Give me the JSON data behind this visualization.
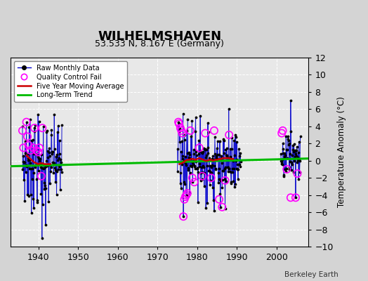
{
  "title": "WILHELMSHAVEN",
  "subtitle": "53.533 N, 8.167 E (Germany)",
  "ylabel": "Temperature Anomaly (°C)",
  "credit": "Berkeley Earth",
  "xlim": [
    1933,
    2008
  ],
  "ylim": [
    -10,
    12
  ],
  "yticks": [
    -10,
    -8,
    -6,
    -4,
    -2,
    0,
    2,
    4,
    6,
    8,
    10,
    12
  ],
  "xticks": [
    1940,
    1950,
    1960,
    1970,
    1980,
    1990,
    2000
  ],
  "plot_bg": "#e8e8e8",
  "fig_bg": "#d4d4d4",
  "raw_color": "#0000cc",
  "qc_color": "#ff00ff",
  "moving_avg_color": "#cc0000",
  "trend_color": "#00bb00",
  "trend_x": [
    1933,
    2008
  ],
  "trend_y": [
    -0.65,
    0.25
  ],
  "ma1_x": [
    1937.0,
    1937.5,
    1938.0,
    1938.5,
    1939.0,
    1939.5,
    1940.0,
    1940.5,
    1941.0,
    1941.5,
    1942.0,
    1942.5,
    1943.0
  ],
  "ma1_y": [
    0.6,
    0.4,
    0.2,
    0.0,
    -0.2,
    -0.3,
    -0.4,
    -0.3,
    -0.3,
    -0.4,
    -0.4,
    -0.4,
    -0.4
  ],
  "ma2_x": [
    1975.5,
    1976.0,
    1976.5,
    1977.0,
    1977.5,
    1978.0,
    1978.5,
    1979.0,
    1979.5,
    1980.0,
    1980.5,
    1981.0,
    1981.5,
    1982.0,
    1982.5,
    1983.0,
    1983.5,
    1984.0,
    1984.5,
    1985.0,
    1985.5,
    1986.0,
    1986.5,
    1987.0,
    1987.5,
    1988.0,
    1988.5,
    1989.0
  ],
  "ma2_y": [
    -0.4,
    -0.3,
    -0.2,
    0.0,
    0.1,
    0.1,
    0.2,
    0.2,
    0.1,
    0.2,
    0.3,
    0.2,
    0.1,
    0.0,
    0.0,
    0.1,
    0.1,
    0.0,
    0.1,
    0.1,
    0.2,
    0.2,
    0.3,
    0.3,
    0.3,
    0.3,
    0.2,
    0.2
  ]
}
